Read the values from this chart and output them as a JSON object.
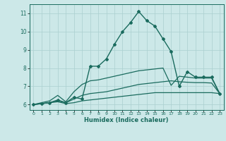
{
  "title": "",
  "xlabel": "Humidex (Indice chaleur)",
  "ylabel": "",
  "bg_color": "#cce8e8",
  "line_color": "#1a6b5e",
  "grid_color": "#aacfcf",
  "xlim": [
    -0.5,
    23.5
  ],
  "ylim": [
    5.7,
    11.5
  ],
  "xticks": [
    0,
    1,
    2,
    3,
    4,
    5,
    6,
    7,
    8,
    9,
    10,
    11,
    12,
    13,
    14,
    15,
    16,
    17,
    18,
    19,
    20,
    21,
    22,
    23
  ],
  "yticks": [
    6,
    7,
    8,
    9,
    10,
    11
  ],
  "lines": [
    {
      "x": [
        0,
        1,
        2,
        3,
        4,
        5,
        6,
        7,
        8,
        9,
        10,
        11,
        12,
        13,
        14,
        15,
        16,
        17,
        18,
        19,
        20,
        21,
        22,
        23
      ],
      "y": [
        6.0,
        6.05,
        6.1,
        6.15,
        6.05,
        6.1,
        6.2,
        6.25,
        6.3,
        6.35,
        6.4,
        6.45,
        6.5,
        6.55,
        6.6,
        6.65,
        6.65,
        6.65,
        6.65,
        6.65,
        6.65,
        6.65,
        6.65,
        6.6
      ],
      "marker": false,
      "linewidth": 0.9
    },
    {
      "x": [
        0,
        1,
        2,
        3,
        4,
        5,
        6,
        7,
        8,
        9,
        10,
        11,
        12,
        13,
        14,
        15,
        16,
        17,
        18,
        19,
        20,
        21,
        22,
        23
      ],
      "y": [
        6.0,
        6.05,
        6.1,
        6.2,
        6.1,
        6.3,
        6.5,
        6.6,
        6.65,
        6.7,
        6.8,
        6.9,
        7.0,
        7.1,
        7.15,
        7.2,
        7.25,
        7.3,
        7.25,
        7.22,
        7.2,
        7.2,
        7.18,
        6.6
      ],
      "marker": false,
      "linewidth": 0.9
    },
    {
      "x": [
        0,
        1,
        2,
        3,
        4,
        5,
        6,
        7,
        8,
        9,
        10,
        11,
        12,
        13,
        14,
        15,
        16,
        17,
        18,
        19,
        20,
        21,
        22,
        23
      ],
      "y": [
        6.0,
        6.1,
        6.2,
        6.5,
        6.15,
        6.7,
        7.1,
        7.3,
        7.35,
        7.45,
        7.55,
        7.65,
        7.75,
        7.85,
        7.9,
        7.95,
        8.0,
        7.05,
        7.55,
        7.5,
        7.45,
        7.45,
        7.45,
        6.6
      ],
      "marker": false,
      "linewidth": 0.9
    },
    {
      "x": [
        0,
        1,
        2,
        3,
        4,
        5,
        6,
        7,
        8,
        9,
        10,
        11,
        12,
        13,
        14,
        15,
        16,
        17,
        18,
        19,
        20,
        21,
        22,
        23
      ],
      "y": [
        6.0,
        6.05,
        6.1,
        6.25,
        6.1,
        6.4,
        6.3,
        8.1,
        8.1,
        8.5,
        9.3,
        10.0,
        10.5,
        11.1,
        10.6,
        10.3,
        9.6,
        8.9,
        7.0,
        7.8,
        7.5,
        7.5,
        7.5,
        6.6
      ],
      "marker": true,
      "linewidth": 1.0
    }
  ]
}
